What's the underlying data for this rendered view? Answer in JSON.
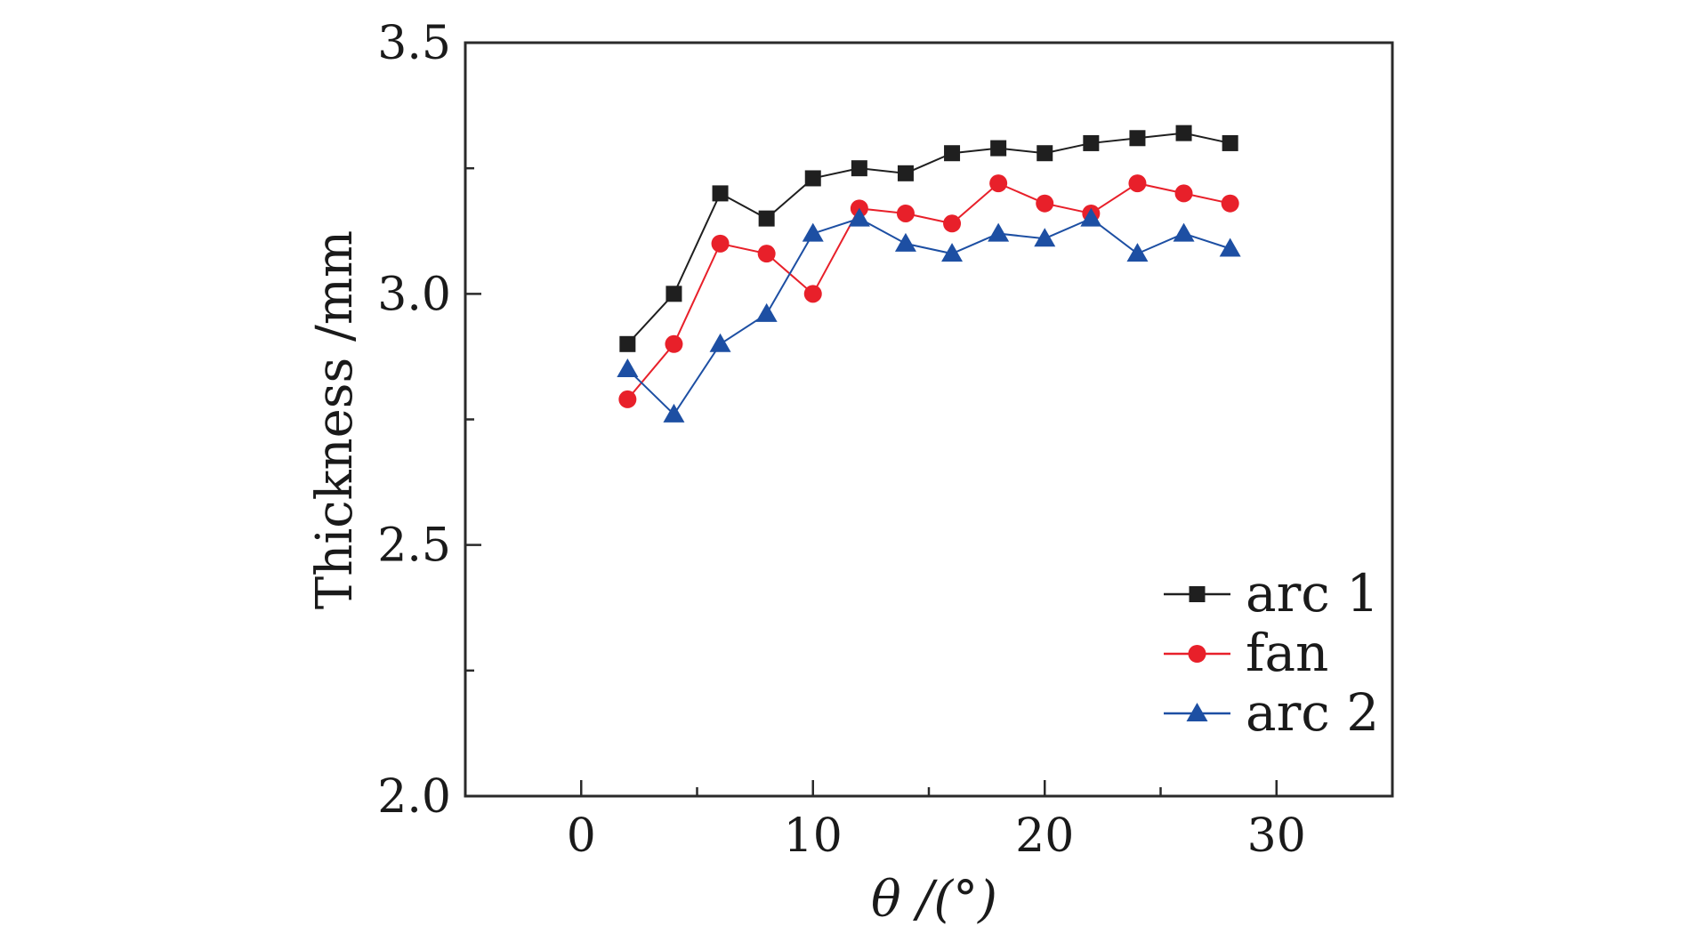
{
  "chart_data": {
    "type": "line",
    "title": "",
    "xlabel": "θ /(°)",
    "ylabel": "Thickness /mm",
    "xlim": [
      -5,
      35
    ],
    "ylim": [
      2.0,
      3.5
    ],
    "x_ticks": [
      0,
      10,
      20,
      30
    ],
    "x_tick_labels": [
      "0",
      "10",
      "20",
      "30"
    ],
    "y_ticks": [
      2.0,
      2.5,
      3.0,
      3.5
    ],
    "y_tick_labels": [
      "2.0",
      "2.5",
      "3.0",
      "3.5"
    ],
    "grid": false,
    "legend_position": "bottom-right",
    "x": [
      2,
      4,
      6,
      8,
      10,
      12,
      14,
      16,
      18,
      20,
      22,
      24,
      26,
      28
    ],
    "series": [
      {
        "name": "arc 1",
        "marker": "square",
        "color": "#1f1f1f",
        "values": [
          2.9,
          3.0,
          3.2,
          3.15,
          3.23,
          3.25,
          3.24,
          3.28,
          3.29,
          3.28,
          3.3,
          3.31,
          3.32,
          3.3
        ]
      },
      {
        "name": "fan",
        "marker": "circle",
        "color": "#e8202a",
        "values": [
          2.79,
          2.9,
          3.1,
          3.08,
          3.0,
          3.17,
          3.16,
          3.14,
          3.22,
          3.18,
          3.16,
          3.22,
          3.2,
          3.18
        ]
      },
      {
        "name": "arc 2",
        "marker": "triangle",
        "color": "#1d4fa3",
        "values": [
          2.85,
          2.76,
          2.9,
          2.96,
          3.12,
          3.15,
          3.1,
          3.08,
          3.12,
          3.11,
          3.15,
          3.08,
          3.12,
          3.09
        ]
      }
    ]
  }
}
